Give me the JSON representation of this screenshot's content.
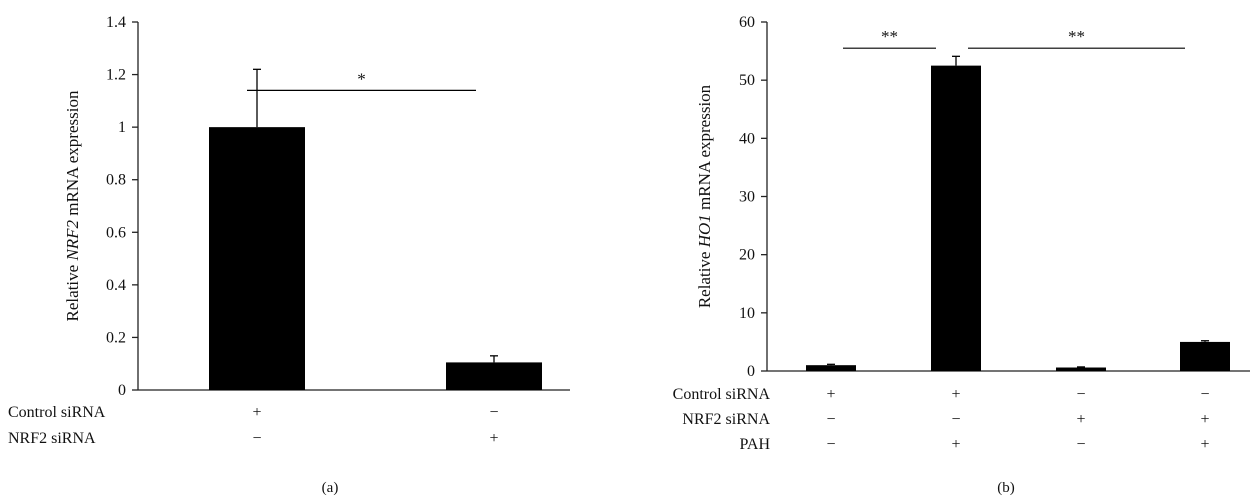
{
  "chart_data": [
    {
      "type": "bar",
      "panel_label": "(a)",
      "ylabel_prefix": "Relative ",
      "ylabel_gene": "NRF2",
      "ylabel_suffix": " mRNA expression",
      "ylim": [
        0,
        1.4
      ],
      "yticks": [
        0,
        0.2,
        0.4,
        0.6,
        0.8,
        1,
        1.2,
        1.4
      ],
      "values": [
        1.0,
        0.105
      ],
      "errors": [
        0.22,
        0.025
      ],
      "conditions": [
        {
          "label": "Control siRNA",
          "marks": [
            "+",
            "−"
          ]
        },
        {
          "label": "NRF2 siRNA",
          "marks": [
            "−",
            "+"
          ]
        }
      ],
      "significance": [
        {
          "from": 0,
          "to": 1,
          "label": "*",
          "y": 1.14
        }
      ],
      "bar_color": "#000000"
    },
    {
      "type": "bar",
      "panel_label": "(b)",
      "ylabel_prefix": "Relative ",
      "ylabel_gene": "HO1",
      "ylabel_suffix": " mRNA expression",
      "ylim": [
        0,
        60
      ],
      "yticks": [
        0,
        10,
        20,
        30,
        40,
        50,
        60
      ],
      "values": [
        1.0,
        52.5,
        0.6,
        5.0
      ],
      "errors": [
        0.15,
        1.6,
        0.1,
        0.2
      ],
      "conditions": [
        {
          "label": "Control siRNA",
          "marks": [
            "+",
            "+",
            "−",
            "−"
          ]
        },
        {
          "label": "NRF2 siRNA",
          "marks": [
            "−",
            "−",
            "+",
            "+"
          ]
        },
        {
          "label": "PAH",
          "marks": [
            "−",
            "+",
            "−",
            "+"
          ]
        }
      ],
      "significance": [
        {
          "from": 0,
          "to": 1,
          "label": "**",
          "y": 55.5
        },
        {
          "from": 1,
          "to": 3,
          "label": "**",
          "y": 55.5
        }
      ],
      "bar_color": "#000000"
    }
  ]
}
